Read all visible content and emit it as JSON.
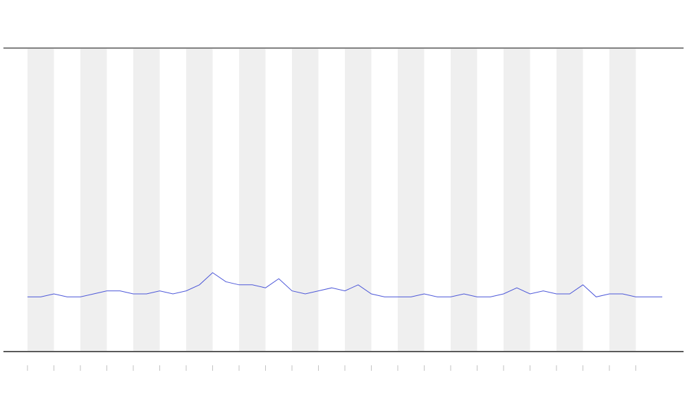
{
  "chart_data": {
    "type": "line",
    "x": [
      0,
      0.5,
      1,
      1.5,
      2,
      2.5,
      3,
      3.5,
      4,
      4.5,
      5,
      5.5,
      6,
      6.5,
      7,
      7.5,
      8,
      8.5,
      9,
      9.5,
      10,
      10.5,
      11,
      11.5,
      12,
      12.5,
      13,
      13.5,
      14,
      14.5,
      15,
      15.5,
      16,
      16.5,
      17,
      17.5,
      18,
      18.5,
      19,
      19.5,
      20,
      20.5,
      21,
      21.5,
      22,
      22.5,
      23,
      23.5,
      24
    ],
    "series": [
      {
        "color": "#4a55d8",
        "values": [
          18,
          18,
          19,
          18,
          18,
          19,
          20,
          20,
          19,
          19,
          20,
          19,
          20,
          22,
          26,
          23,
          22,
          22,
          21,
          24,
          20,
          19,
          20,
          21,
          20,
          22,
          19,
          18,
          18,
          18,
          19,
          18,
          18,
          19,
          18,
          18,
          19,
          21,
          19,
          20,
          19,
          19,
          22,
          18,
          19,
          19,
          18,
          18,
          18
        ]
      }
    ],
    "shaded_ranges": [
      [
        0,
        1
      ],
      [
        2,
        3
      ],
      [
        4,
        5
      ],
      [
        6,
        7
      ],
      [
        8,
        9
      ],
      [
        10,
        11
      ],
      [
        12,
        13
      ],
      [
        14,
        15
      ],
      [
        16,
        17
      ],
      [
        18,
        19
      ],
      [
        20,
        21
      ],
      [
        22,
        23
      ]
    ],
    "shade_color": "#efefef",
    "xlim": [
      0,
      24
    ],
    "ylim": [
      0,
      100
    ],
    "xticks": [
      0,
      1,
      2,
      3,
      4,
      5,
      6,
      7,
      8,
      9,
      10,
      11,
      12,
      13,
      14,
      15,
      16,
      17,
      18,
      19,
      20,
      21,
      22,
      23
    ]
  }
}
